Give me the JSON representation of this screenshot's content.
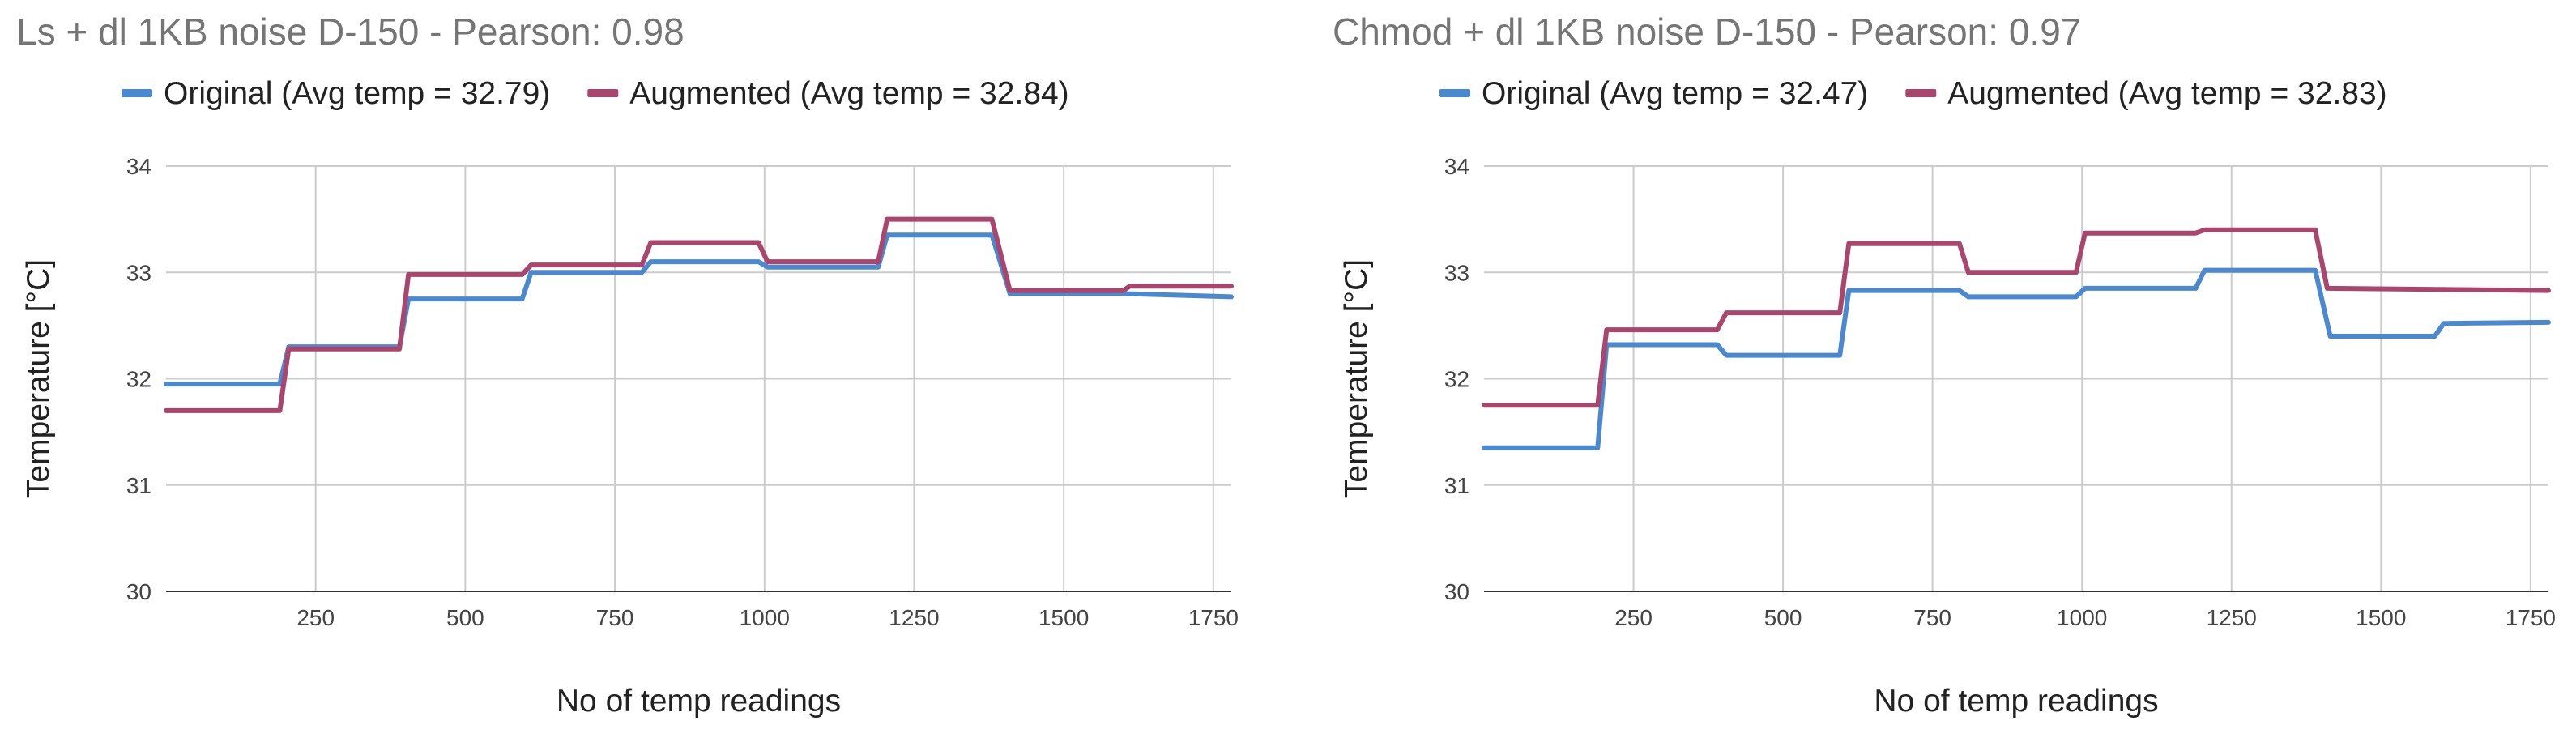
{
  "chart_data": [
    {
      "type": "line",
      "title": "Ls + dl 1KB noise D-150 - Pearson: 0.98",
      "xlabel": "No of temp readings",
      "ylabel": "Temperature [°C]",
      "xlim": [
        0,
        1780
      ],
      "ylim": [
        30,
        34
      ],
      "xticks": [
        250,
        500,
        750,
        1000,
        1250,
        1500,
        1750
      ],
      "yticks": [
        30,
        31,
        32,
        33,
        34
      ],
      "grid": true,
      "legend_position": "top",
      "series": [
        {
          "name": "Original (Avg temp = 32.79)",
          "color": "#4a89d0",
          "x": [
            0,
            190,
            205,
            390,
            405,
            595,
            610,
            795,
            810,
            990,
            1005,
            1190,
            1205,
            1380,
            1410,
            1600,
            1780
          ],
          "y": [
            31.95,
            31.95,
            32.3,
            32.3,
            32.75,
            32.75,
            33.0,
            33.0,
            33.1,
            33.1,
            33.05,
            33.05,
            33.35,
            33.35,
            32.8,
            32.8,
            32.77
          ]
        },
        {
          "name": "Augmented (Avg temp = 32.84)",
          "color": "#a8466e",
          "x": [
            0,
            190,
            205,
            390,
            405,
            595,
            610,
            795,
            810,
            990,
            1005,
            1190,
            1205,
            1380,
            1410,
            1600,
            1610,
            1780
          ],
          "y": [
            31.7,
            31.7,
            32.28,
            32.28,
            32.98,
            32.98,
            33.07,
            33.07,
            33.28,
            33.28,
            33.1,
            33.1,
            33.5,
            33.5,
            32.83,
            32.83,
            32.87,
            32.87
          ]
        }
      ]
    },
    {
      "type": "line",
      "title": "Chmod + dl 1KB noise D-150 - Pearson: 0.97",
      "xlabel": "No of temp readings",
      "ylabel": "Temperature [°C]",
      "xlim": [
        0,
        1780
      ],
      "ylim": [
        30,
        34
      ],
      "xticks": [
        250,
        500,
        750,
        1000,
        1250,
        1500,
        1750
      ],
      "yticks": [
        30,
        31,
        32,
        33,
        34
      ],
      "grid": true,
      "legend_position": "top",
      "series": [
        {
          "name": "Original (Avg temp = 32.47)",
          "color": "#4a89d0",
          "x": [
            0,
            190,
            205,
            390,
            405,
            595,
            610,
            795,
            810,
            990,
            1005,
            1190,
            1205,
            1390,
            1415,
            1590,
            1605,
            1780
          ],
          "y": [
            31.35,
            31.35,
            32.32,
            32.32,
            32.22,
            32.22,
            32.83,
            32.83,
            32.77,
            32.77,
            32.85,
            32.85,
            33.02,
            33.02,
            32.4,
            32.4,
            32.52,
            32.53
          ]
        },
        {
          "name": "Augmented (Avg temp = 32.83)",
          "color": "#a8466e",
          "x": [
            0,
            190,
            205,
            390,
            405,
            595,
            610,
            795,
            810,
            990,
            1005,
            1190,
            1205,
            1390,
            1410,
            1780
          ],
          "y": [
            31.75,
            31.75,
            32.46,
            32.46,
            32.62,
            32.62,
            33.27,
            33.27,
            33.0,
            33.0,
            33.37,
            33.37,
            33.4,
            33.4,
            32.85,
            32.83
          ]
        }
      ]
    }
  ]
}
